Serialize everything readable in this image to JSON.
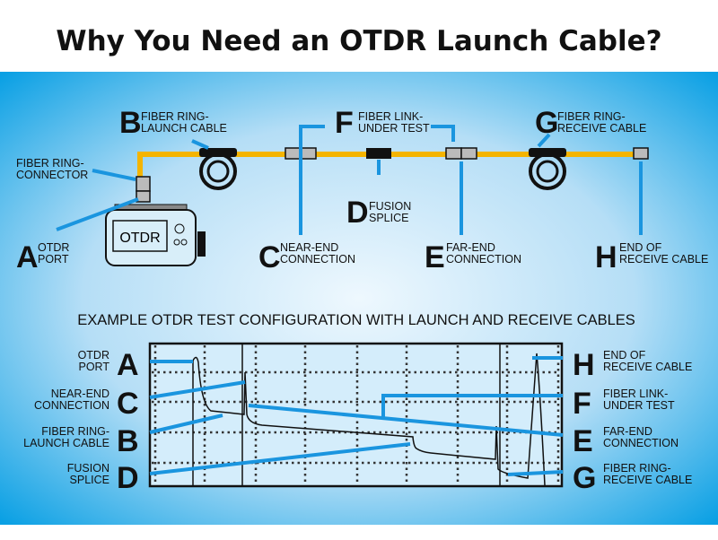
{
  "title": "Why You Need an OTDR Launch Cable?",
  "colors": {
    "background_edge": "#0aa0e4",
    "background_center": "#e8f5fd",
    "fiber": "#f4b400",
    "leader": "#1a95df"
  },
  "top": {
    "device_label": "OTDR",
    "labels": {
      "connector": [
        "FIBER RING-",
        "CONNECTOR"
      ],
      "A": {
        "letter": "A",
        "lines": [
          "OTDR",
          "PORT"
        ]
      },
      "B": {
        "letter": "B",
        "lines": [
          "FIBER RING-",
          "LAUNCH CABLE"
        ]
      },
      "C": {
        "letter": "C",
        "lines": [
          "NEAR-END",
          "CONNECTION"
        ]
      },
      "D": {
        "letter": "D",
        "lines": [
          "FUSION",
          "SPLICE"
        ]
      },
      "E": {
        "letter": "E",
        "lines": [
          "FAR-END",
          "CONNECTION"
        ]
      },
      "F": {
        "letter": "F",
        "lines": [
          "FIBER LINK-",
          "UNDER TEST"
        ]
      },
      "G": {
        "letter": "G",
        "lines": [
          "FIBER RING-",
          "RECEIVE CABLE"
        ]
      },
      "H": {
        "letter": "H",
        "lines": [
          "END OF",
          "RECEIVE CABLE"
        ]
      }
    }
  },
  "bottom": {
    "subtitle": "EXAMPLE OTDR TEST CONFIGURATION WITH LAUNCH AND RECEIVE CABLES",
    "left": [
      {
        "letter": "A",
        "lines": [
          "OTDR",
          "PORT"
        ]
      },
      {
        "letter": "C",
        "lines": [
          "NEAR-END",
          "CONNECTION"
        ]
      },
      {
        "letter": "B",
        "lines": [
          "FIBER RING-",
          "LAUNCH CABLE"
        ]
      },
      {
        "letter": "D",
        "lines": [
          "FUSION",
          "SPLICE"
        ]
      }
    ],
    "right": [
      {
        "letter": "H",
        "lines": [
          "END OF",
          "RECEIVE CABLE"
        ]
      },
      {
        "letter": "F",
        "lines": [
          "FIBER LINK-",
          "UNDER TEST"
        ]
      },
      {
        "letter": "E",
        "lines": [
          "FAR-END",
          "CONNECTION"
        ]
      },
      {
        "letter": "G",
        "lines": [
          "FIBER RING-",
          "RECEIVE CABLE"
        ]
      }
    ]
  }
}
